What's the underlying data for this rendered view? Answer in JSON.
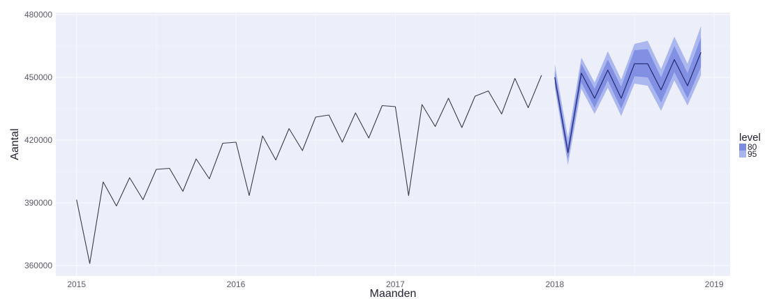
{
  "chart_data": {
    "type": "line",
    "title": "",
    "xlabel": "Maanden",
    "ylabel": "Aantal",
    "xlim": [
      2014.87,
      2019.1
    ],
    "ylim": [
      355000,
      481000
    ],
    "grid": true,
    "x_ticks": [
      2015,
      2016,
      2017,
      2018,
      2019
    ],
    "x_tick_labels": [
      "2015",
      "2016",
      "2017",
      "2018",
      "2019"
    ],
    "y_ticks": [
      360000,
      390000,
      420000,
      450000,
      480000
    ],
    "y_tick_labels": [
      "360000",
      "390000",
      "420000",
      "450000",
      "480000"
    ],
    "colors": {
      "panel": "#eceff9",
      "grid": "#f7f8fd",
      "line": "#3a3a4a",
      "forecast_line": "#2a2f7a",
      "band95": "#a8b4ee",
      "band80": "#7c8ce0"
    },
    "series": [
      {
        "name": "",
        "x": [
          2015.0,
          2015.083,
          2015.167,
          2015.25,
          2015.333,
          2015.417,
          2015.5,
          2015.583,
          2015.667,
          2015.75,
          2015.833,
          2015.917,
          2016.0,
          2016.083,
          2016.167,
          2016.25,
          2016.333,
          2016.417,
          2016.5,
          2016.583,
          2016.667,
          2016.75,
          2016.833,
          2016.917,
          2017.0,
          2017.083,
          2017.167,
          2017.25,
          2017.333,
          2017.417,
          2017.5,
          2017.583,
          2017.667,
          2017.75,
          2017.833,
          2017.917
        ],
        "y": [
          391500,
          361000,
          400000,
          388500,
          402000,
          391500,
          406000,
          406500,
          395500,
          411000,
          401500,
          418500,
          419000,
          393500,
          422000,
          410500,
          425500,
          415000,
          431000,
          432000,
          419000,
          433000,
          421000,
          436500,
          436000,
          393500,
          437000,
          426500,
          440000,
          426000,
          441000,
          443500,
          432500,
          449500,
          435500,
          451000
        ]
      }
    ],
    "forecast": {
      "x": [
        2018.0,
        2018.083,
        2018.167,
        2018.25,
        2018.333,
        2018.417,
        2018.5,
        2018.583,
        2018.667,
        2018.75,
        2018.833,
        2018.917
      ],
      "mean": [
        450000,
        414000,
        452000,
        440000,
        453500,
        440000,
        456500,
        456500,
        444000,
        458500,
        446000,
        462000
      ],
      "lo80": [
        447000,
        411000,
        447500,
        435500,
        448500,
        435000,
        450500,
        450000,
        438000,
        452500,
        440000,
        455000
      ],
      "hi80": [
        453000,
        417500,
        456500,
        444500,
        458500,
        445500,
        463000,
        463500,
        450000,
        465000,
        452000,
        469000
      ],
      "lo95": [
        445000,
        408000,
        444500,
        432500,
        445000,
        431500,
        447000,
        446000,
        434000,
        448500,
        436500,
        451000
      ],
      "hi95": [
        456500,
        421000,
        459500,
        447500,
        462500,
        449000,
        466000,
        467500,
        454000,
        469500,
        456500,
        474500
      ]
    },
    "legend": {
      "title": "level",
      "placement": "right",
      "entries": [
        {
          "label": "80",
          "color": "#7c8ce0"
        },
        {
          "label": "95",
          "color": "#a8b4ee"
        }
      ]
    }
  }
}
